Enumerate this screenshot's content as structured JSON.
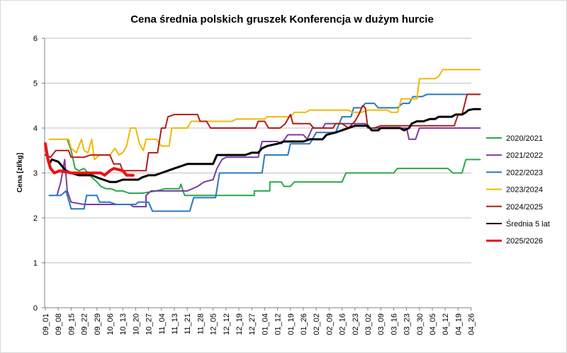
{
  "chart_data": {
    "type": "line",
    "title": "Cena średnia polskich gruszek Konferencja w dużym hurcie",
    "xlabel": "",
    "ylabel": "Cena [zł/kg]",
    "ylim": [
      0,
      6
    ],
    "yticks": [
      0,
      1,
      2,
      3,
      4,
      5,
      6
    ],
    "grid": "horizontal",
    "legend_position": "right",
    "x_categories": [
      "09_01",
      "09_08",
      "09_15",
      "09_22",
      "09_29",
      "10_06",
      "10_13",
      "10_20",
      "10_27",
      "11_04",
      "11_13",
      "11_21",
      "11_28",
      "12_05",
      "12_12",
      "12_19",
      "12_27",
      "01_04",
      "01_12",
      "01_19",
      "01_26",
      "02_02",
      "02_09",
      "02_16",
      "02_23",
      "03_02",
      "03_09",
      "03_16",
      "03_23",
      "03_30",
      "04_05",
      "04_12",
      "04_19",
      "04_26"
    ],
    "series": [
      {
        "name": "2020/2021",
        "color": "#2ba64a",
        "width": 2,
        "points": [
          [
            1.7,
            3.75
          ],
          [
            2.0,
            3.5
          ],
          [
            2.3,
            3.1
          ],
          [
            2.6,
            3.05
          ],
          [
            3.0,
            3.1
          ],
          [
            3.3,
            3.0
          ],
          [
            3.6,
            2.9
          ],
          [
            4.0,
            2.8
          ],
          [
            4.3,
            2.7
          ],
          [
            4.7,
            2.65
          ],
          [
            5.1,
            2.65
          ],
          [
            5.5,
            2.6
          ],
          [
            6.0,
            2.6
          ],
          [
            6.5,
            2.55
          ],
          [
            7.5,
            2.55
          ],
          [
            8.6,
            2.6
          ],
          [
            9.3,
            2.65
          ],
          [
            10.4,
            2.65
          ],
          [
            10.5,
            2.75
          ],
          [
            10.8,
            2.5
          ],
          [
            11.5,
            2.5
          ],
          [
            16.2,
            2.5
          ],
          [
            16.2,
            2.6
          ],
          [
            17.4,
            2.6
          ],
          [
            17.4,
            2.8
          ],
          [
            18.3,
            2.8
          ],
          [
            18.5,
            2.7
          ],
          [
            19.0,
            2.7
          ],
          [
            19.3,
            2.8
          ],
          [
            23.0,
            2.8
          ],
          [
            23.3,
            3.0
          ],
          [
            27.0,
            3.0
          ],
          [
            27.3,
            3.1
          ],
          [
            31.2,
            3.1
          ],
          [
            31.6,
            3.0
          ],
          [
            32.3,
            3.0
          ],
          [
            32.6,
            3.3
          ],
          [
            33.7,
            3.3
          ]
        ]
      },
      {
        "name": "2021/2022",
        "color": "#7a3b9e",
        "width": 2,
        "points": [
          [
            0.9,
            2.5
          ],
          [
            1.2,
            2.8
          ],
          [
            1.5,
            3.3
          ],
          [
            1.7,
            2.6
          ],
          [
            2.0,
            2.35
          ],
          [
            3.0,
            2.3
          ],
          [
            5.4,
            2.3
          ],
          [
            6.6,
            2.3
          ],
          [
            6.8,
            2.25
          ],
          [
            7.8,
            2.25
          ],
          [
            7.8,
            2.5
          ],
          [
            8.2,
            2.6
          ],
          [
            9.2,
            2.6
          ],
          [
            10.5,
            2.6
          ],
          [
            11.0,
            2.6
          ],
          [
            11.8,
            2.7
          ],
          [
            12.3,
            2.8
          ],
          [
            13.0,
            2.85
          ],
          [
            13.3,
            3.1
          ],
          [
            13.7,
            3.3
          ],
          [
            14.0,
            3.35
          ],
          [
            16.5,
            3.35
          ],
          [
            16.8,
            3.7
          ],
          [
            18.0,
            3.7
          ],
          [
            18.3,
            3.65
          ],
          [
            18.8,
            3.85
          ],
          [
            20.0,
            3.85
          ],
          [
            20.3,
            3.75
          ],
          [
            20.7,
            4.0
          ],
          [
            21.5,
            4.0
          ],
          [
            21.7,
            4.1
          ],
          [
            24.8,
            4.1
          ],
          [
            25.0,
            4.0
          ],
          [
            28.0,
            4.0
          ],
          [
            28.2,
            3.75
          ],
          [
            28.7,
            3.75
          ],
          [
            29.0,
            4.0
          ],
          [
            33.7,
            4.0
          ]
        ]
      },
      {
        "name": "2022/2023",
        "color": "#2878c0",
        "width": 2,
        "points": [
          [
            0.3,
            2.5
          ],
          [
            1.2,
            2.5
          ],
          [
            1.6,
            2.6
          ],
          [
            2.0,
            2.2
          ],
          [
            3.0,
            2.2
          ],
          [
            3.2,
            2.5
          ],
          [
            3.5,
            2.5
          ],
          [
            4.0,
            2.5
          ],
          [
            4.2,
            2.35
          ],
          [
            5.0,
            2.35
          ],
          [
            5.5,
            2.3
          ],
          [
            6.7,
            2.3
          ],
          [
            7.0,
            2.3
          ],
          [
            7.2,
            2.35
          ],
          [
            8.0,
            2.35
          ],
          [
            8.3,
            2.15
          ],
          [
            10.8,
            2.15
          ],
          [
            11.2,
            2.15
          ],
          [
            11.5,
            2.45
          ],
          [
            13.2,
            2.45
          ],
          [
            13.5,
            3.0
          ],
          [
            16.8,
            3.0
          ],
          [
            17.0,
            3.4
          ],
          [
            18.8,
            3.4
          ],
          [
            19.0,
            3.65
          ],
          [
            20.5,
            3.65
          ],
          [
            21.0,
            3.9
          ],
          [
            22.5,
            3.9
          ],
          [
            23.0,
            4.25
          ],
          [
            23.7,
            4.25
          ],
          [
            23.9,
            4.45
          ],
          [
            24.5,
            4.45
          ],
          [
            24.8,
            4.55
          ],
          [
            25.5,
            4.55
          ],
          [
            25.8,
            4.45
          ],
          [
            27.3,
            4.45
          ],
          [
            27.7,
            4.55
          ],
          [
            28.2,
            4.55
          ],
          [
            28.5,
            4.7
          ],
          [
            29.2,
            4.7
          ],
          [
            29.6,
            4.75
          ],
          [
            33.7,
            4.75
          ]
        ]
      },
      {
        "name": "2023/2024",
        "color": "#f2b800",
        "width": 2,
        "points": [
          [
            0.3,
            3.75
          ],
          [
            1.2,
            3.75
          ],
          [
            1.8,
            3.75
          ],
          [
            2.0,
            3.55
          ],
          [
            2.4,
            3.45
          ],
          [
            2.8,
            3.75
          ],
          [
            3.0,
            3.5
          ],
          [
            3.3,
            3.45
          ],
          [
            3.6,
            3.75
          ],
          [
            3.8,
            3.3
          ],
          [
            4.2,
            3.4
          ],
          [
            5.0,
            3.4
          ],
          [
            5.4,
            3.55
          ],
          [
            5.7,
            3.4
          ],
          [
            6.0,
            3.45
          ],
          [
            6.3,
            3.6
          ],
          [
            6.6,
            4.0
          ],
          [
            7.0,
            4.0
          ],
          [
            7.3,
            3.65
          ],
          [
            7.6,
            3.5
          ],
          [
            7.8,
            3.75
          ],
          [
            8.6,
            3.75
          ],
          [
            9.0,
            3.6
          ],
          [
            9.6,
            3.6
          ],
          [
            9.8,
            4.0
          ],
          [
            11.0,
            4.0
          ],
          [
            11.3,
            4.15
          ],
          [
            14.5,
            4.15
          ],
          [
            14.8,
            4.2
          ],
          [
            17.0,
            4.2
          ],
          [
            17.2,
            4.25
          ],
          [
            19.0,
            4.25
          ],
          [
            19.3,
            4.35
          ],
          [
            20.2,
            4.35
          ],
          [
            20.5,
            4.4
          ],
          [
            23.5,
            4.4
          ],
          [
            23.8,
            4.35
          ],
          [
            24.5,
            4.35
          ],
          [
            25.0,
            4.4
          ],
          [
            26.5,
            4.4
          ],
          [
            26.8,
            4.35
          ],
          [
            27.3,
            4.35
          ],
          [
            27.6,
            4.65
          ],
          [
            28.8,
            4.65
          ],
          [
            29.0,
            5.1
          ],
          [
            30.2,
            5.1
          ],
          [
            30.5,
            5.15
          ],
          [
            30.8,
            5.3
          ],
          [
            33.7,
            5.3
          ]
        ]
      },
      {
        "name": "2024/2025",
        "color": "#b01c1c",
        "width": 2,
        "points": [
          [
            0.0,
            3.4
          ],
          [
            0.4,
            3.35
          ],
          [
            0.8,
            3.5
          ],
          [
            1.8,
            3.5
          ],
          [
            2.0,
            3.35
          ],
          [
            3.0,
            3.35
          ],
          [
            3.5,
            3.4
          ],
          [
            5.0,
            3.4
          ],
          [
            5.3,
            3.2
          ],
          [
            5.8,
            3.2
          ],
          [
            6.0,
            3.05
          ],
          [
            7.8,
            3.05
          ],
          [
            8.0,
            3.45
          ],
          [
            8.7,
            3.45
          ],
          [
            9.0,
            4.0
          ],
          [
            9.3,
            4.0
          ],
          [
            9.5,
            4.25
          ],
          [
            10.0,
            4.3
          ],
          [
            11.8,
            4.3
          ],
          [
            12.0,
            4.15
          ],
          [
            12.5,
            4.15
          ],
          [
            12.8,
            4.0
          ],
          [
            16.3,
            4.0
          ],
          [
            16.5,
            4.15
          ],
          [
            17.0,
            4.15
          ],
          [
            17.3,
            4.0
          ],
          [
            18.2,
            4.0
          ],
          [
            18.6,
            4.1
          ],
          [
            19.0,
            4.3
          ],
          [
            19.2,
            4.1
          ],
          [
            20.5,
            4.1
          ],
          [
            20.8,
            4.0
          ],
          [
            22.3,
            4.0
          ],
          [
            22.5,
            4.1
          ],
          [
            23.0,
            4.1
          ],
          [
            23.5,
            4.0
          ],
          [
            24.0,
            4.15
          ],
          [
            24.3,
            4.3
          ],
          [
            24.6,
            4.5
          ],
          [
            24.8,
            4.45
          ],
          [
            25.0,
            4.0
          ],
          [
            25.5,
            4.0
          ],
          [
            26.0,
            4.05
          ],
          [
            31.7,
            4.05
          ],
          [
            32.0,
            4.3
          ],
          [
            32.3,
            4.3
          ],
          [
            32.7,
            4.75
          ],
          [
            33.7,
            4.75
          ]
        ]
      },
      {
        "name": "Średnia 5 lat",
        "color": "#000000",
        "width": 3,
        "points": [
          [
            0.0,
            3.65
          ],
          [
            0.3,
            3.2
          ],
          [
            0.5,
            3.3
          ],
          [
            1.0,
            3.25
          ],
          [
            1.3,
            3.15
          ],
          [
            1.6,
            3.05
          ],
          [
            2.0,
            3.0
          ],
          [
            2.6,
            2.95
          ],
          [
            3.0,
            2.95
          ],
          [
            3.3,
            2.95
          ],
          [
            3.6,
            2.95
          ],
          [
            4.0,
            2.9
          ],
          [
            4.5,
            2.85
          ],
          [
            5.0,
            2.8
          ],
          [
            5.5,
            2.8
          ],
          [
            6.0,
            2.85
          ],
          [
            6.5,
            2.85
          ],
          [
            7.2,
            2.85
          ],
          [
            7.5,
            2.9
          ],
          [
            8.0,
            2.95
          ],
          [
            8.5,
            2.95
          ],
          [
            9.0,
            3.0
          ],
          [
            9.5,
            3.05
          ],
          [
            10.0,
            3.1
          ],
          [
            10.5,
            3.15
          ],
          [
            11.0,
            3.2
          ],
          [
            11.5,
            3.2
          ],
          [
            12.0,
            3.2
          ],
          [
            12.5,
            3.2
          ],
          [
            13.0,
            3.2
          ],
          [
            13.3,
            3.4
          ],
          [
            14.0,
            3.4
          ],
          [
            14.5,
            3.4
          ],
          [
            15.0,
            3.4
          ],
          [
            15.5,
            3.4
          ],
          [
            16.0,
            3.45
          ],
          [
            16.5,
            3.45
          ],
          [
            16.8,
            3.55
          ],
          [
            17.2,
            3.6
          ],
          [
            18.0,
            3.65
          ],
          [
            18.5,
            3.7
          ],
          [
            19.0,
            3.7
          ],
          [
            19.5,
            3.7
          ],
          [
            20.0,
            3.7
          ],
          [
            20.5,
            3.75
          ],
          [
            21.0,
            3.75
          ],
          [
            21.5,
            3.75
          ],
          [
            21.8,
            3.85
          ],
          [
            22.5,
            3.9
          ],
          [
            23.0,
            3.95
          ],
          [
            23.5,
            4.0
          ],
          [
            24.0,
            4.05
          ],
          [
            24.5,
            4.05
          ],
          [
            25.0,
            4.05
          ],
          [
            25.3,
            3.95
          ],
          [
            25.8,
            3.95
          ],
          [
            26.0,
            4.0
          ],
          [
            26.5,
            4.0
          ],
          [
            27.0,
            4.0
          ],
          [
            27.5,
            4.0
          ],
          [
            27.8,
            3.95
          ],
          [
            28.2,
            4.0
          ],
          [
            28.4,
            4.1
          ],
          [
            28.8,
            4.15
          ],
          [
            29.3,
            4.15
          ],
          [
            29.8,
            4.2
          ],
          [
            30.2,
            4.2
          ],
          [
            30.5,
            4.25
          ],
          [
            31.0,
            4.25
          ],
          [
            31.5,
            4.25
          ],
          [
            31.8,
            4.3
          ],
          [
            32.3,
            4.3
          ],
          [
            32.6,
            4.35
          ],
          [
            32.8,
            4.4
          ],
          [
            33.2,
            4.42
          ],
          [
            33.7,
            4.42
          ]
        ]
      },
      {
        "name": "2025/2026",
        "color": "#ee1111",
        "width": 4,
        "points": [
          [
            0.0,
            3.65
          ],
          [
            0.2,
            3.3
          ],
          [
            0.4,
            3.1
          ],
          [
            0.7,
            3.0
          ],
          [
            1.1,
            3.05
          ],
          [
            2.0,
            3.0
          ],
          [
            3.3,
            3.0
          ],
          [
            4.0,
            3.0
          ],
          [
            4.3,
            3.0
          ],
          [
            4.6,
            2.95
          ],
          [
            5.0,
            3.05
          ],
          [
            5.3,
            3.1
          ],
          [
            6.0,
            3.05
          ],
          [
            6.3,
            2.95
          ],
          [
            6.8,
            2.95
          ]
        ]
      }
    ]
  }
}
